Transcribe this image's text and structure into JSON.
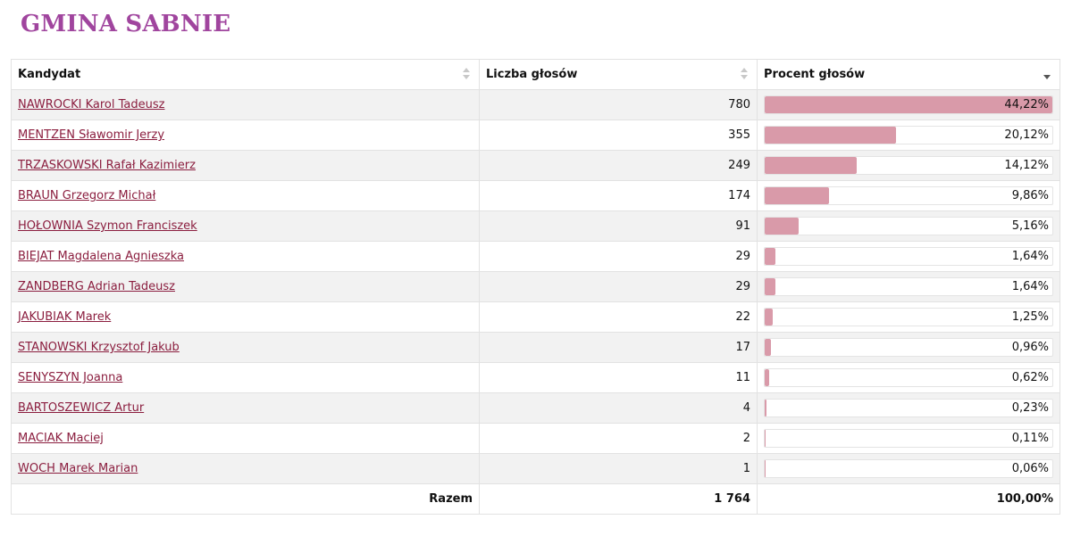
{
  "page": {
    "title": "GMINA SABNIE"
  },
  "table": {
    "headers": {
      "candidate": "Kandydat",
      "votes": "Liczba głosów",
      "percent": "Procent głosów"
    },
    "rows": [
      {
        "name": "NAWROCKI Karol Tadeusz",
        "votes": "780",
        "percent": "44,22%",
        "fraction": 0.4422
      },
      {
        "name": "MENTZEN Sławomir Jerzy",
        "votes": "355",
        "percent": "20,12%",
        "fraction": 0.2012
      },
      {
        "name": "TRZASKOWSKI Rafał Kazimierz",
        "votes": "249",
        "percent": "14,12%",
        "fraction": 0.1412
      },
      {
        "name": "BRAUN Grzegorz Michał",
        "votes": "174",
        "percent": "9,86%",
        "fraction": 0.0986
      },
      {
        "name": "HOŁOWNIA Szymon Franciszek",
        "votes": "91",
        "percent": "5,16%",
        "fraction": 0.0516
      },
      {
        "name": "BIEJAT Magdalena Agnieszka",
        "votes": "29",
        "percent": "1,64%",
        "fraction": 0.0164
      },
      {
        "name": "ZANDBERG Adrian Tadeusz",
        "votes": "29",
        "percent": "1,64%",
        "fraction": 0.0164
      },
      {
        "name": "JAKUBIAK Marek",
        "votes": "22",
        "percent": "1,25%",
        "fraction": 0.0125
      },
      {
        "name": "STANOWSKI Krzysztof Jakub",
        "votes": "17",
        "percent": "0,96%",
        "fraction": 0.0096
      },
      {
        "name": "SENYSZYN Joanna",
        "votes": "11",
        "percent": "0,62%",
        "fraction": 0.0062
      },
      {
        "name": "BARTOSZEWICZ Artur",
        "votes": "4",
        "percent": "0,23%",
        "fraction": 0.0023
      },
      {
        "name": "MACIAK Maciej",
        "votes": "2",
        "percent": "0,11%",
        "fraction": 0.0011
      },
      {
        "name": "WOCH Marek Marian",
        "votes": "1",
        "percent": "0,06%",
        "fraction": 0.0006
      }
    ],
    "footer": {
      "label": "Razem",
      "votes": "1 764",
      "percent": "100,00%"
    }
  },
  "colors": {
    "title": "#a0459e",
    "link": "#8b1e3f",
    "bar": "#d99aa9",
    "row_alt": "#f2f2f2"
  },
  "icons": {
    "sort": "sort-arrows-icon",
    "sort_active": "sort-desc-icon"
  }
}
